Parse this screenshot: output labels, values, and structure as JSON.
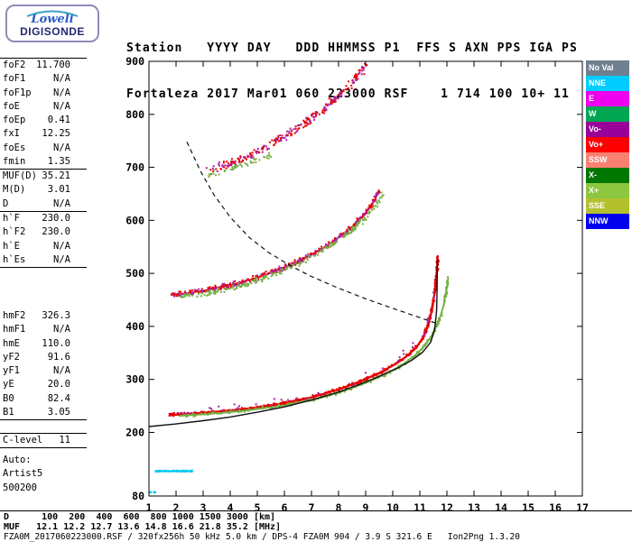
{
  "logo": {
    "line1": "Lowell",
    "line2": "DIGISONDE"
  },
  "header": {
    "line1": "Station   YYYY DAY   DDD HHMMSS P1  FFS S AXN PPS IGA PS",
    "line2": "Fortaleza 2017 Mar01 060 223000 RSF    1 714 100 10+ 11"
  },
  "params": {
    "groups": [
      {
        "rows": [
          [
            "foF2",
            "11.700"
          ],
          [
            "foF1",
            "N/A"
          ],
          [
            "foF1p",
            "N/A"
          ],
          [
            "foE",
            "N/A"
          ],
          [
            "foEp",
            "0.41"
          ],
          [
            "fxI",
            "12.25"
          ],
          [
            "foEs",
            "N/A"
          ],
          [
            "fmin",
            "1.35"
          ]
        ]
      },
      {
        "rows": [
          [
            "MUF(D)",
            "35.21"
          ],
          [
            "M(D)",
            "3.01"
          ],
          [
            "D",
            "N/A"
          ]
        ]
      },
      {
        "rows": [
          [
            "h`F",
            "230.0"
          ],
          [
            "h`F2",
            "230.0"
          ],
          [
            "h`E",
            "N/A"
          ],
          [
            "h`Es",
            "N/A"
          ]
        ]
      },
      {
        "rows": [
          [
            "hmF2",
            "326.3"
          ],
          [
            "hmF1",
            "N/A"
          ],
          [
            "hmE",
            "110.0"
          ],
          [
            "yF2",
            "91.6"
          ],
          [
            "yF1",
            "N/A"
          ],
          [
            "yE",
            "20.0"
          ],
          [
            "B0",
            "82.4"
          ],
          [
            "B1",
            "3.05"
          ]
        ]
      },
      {
        "rows": [
          [
            "C-level",
            "11"
          ]
        ]
      },
      {
        "rows": [
          [
            "Auto:",
            ""
          ],
          [
            "Artist5",
            ""
          ],
          [
            "500200",
            ""
          ]
        ]
      }
    ]
  },
  "legend": {
    "items": [
      {
        "label": "No Val",
        "color": "#708090"
      },
      {
        "label": "NNE",
        "color": "#00ccff"
      },
      {
        "label": "E",
        "color": "#ee00ee"
      },
      {
        "label": "W",
        "color": "#00a651"
      },
      {
        "label": "Vo-",
        "color": "#990099"
      },
      {
        "label": "Vo+",
        "color": "#ff0000"
      },
      {
        "label": "SSW",
        "color": "#fa8072"
      },
      {
        "label": "X-",
        "color": "#007700"
      },
      {
        "label": "X+",
        "color": "#8dc63f"
      },
      {
        "label": "SSE",
        "color": "#b4c12e"
      },
      {
        "label": "NNW",
        "color": "#0000ee"
      }
    ]
  },
  "bottom": {
    "d_row": "D      100  200  400  600  800 1000 1500 3000 [km]",
    "muf_row": "MUF   12.1 12.2 12.7 13.6 14.8 16.6 21.8 35.2 [MHz]",
    "file_row": "FZA0M_2017060223000.RSF / 320fx256h 50 kHz 5.0 km / DPS-4 FZA0M 904 / 3.9 S 321.6 E   Ion2Png 1.3.20"
  },
  "chart_data": {
    "type": "scatter",
    "title": "",
    "x_range": [
      1,
      17
    ],
    "y_range": [
      80,
      900
    ],
    "x_ticks": [
      1,
      2,
      3,
      4,
      5,
      6,
      7,
      8,
      9,
      10,
      11,
      12,
      13,
      14,
      15,
      16,
      17
    ],
    "y_tick_labels": [
      900,
      800,
      700,
      600,
      500,
      400,
      300,
      200,
      80
    ],
    "grid": false,
    "legend_position": "right",
    "traces": [
      {
        "name": "f2-trace-o-mode",
        "kind": "scatter",
        "colors": [
          "#e60000"
        ],
        "n": 520,
        "jf": 0.05,
        "jh": 3.5,
        "size": 2,
        "line_width": 2.2,
        "points": [
          [
            1.75,
            233
          ],
          [
            2.2,
            234
          ],
          [
            3,
            237
          ],
          [
            4,
            241
          ],
          [
            5,
            247
          ],
          [
            6,
            255
          ],
          [
            7,
            266
          ],
          [
            8,
            281
          ],
          [
            8.8,
            296
          ],
          [
            9.5,
            312
          ],
          [
            10,
            326
          ],
          [
            10.5,
            343
          ],
          [
            10.9,
            362
          ],
          [
            11.15,
            382
          ],
          [
            11.32,
            405
          ],
          [
            11.45,
            432
          ],
          [
            11.55,
            465
          ],
          [
            11.62,
            500
          ],
          [
            11.66,
            532
          ]
        ]
      },
      {
        "name": "f2-trace-x-mode",
        "kind": "scatter",
        "colors": [
          "#76b043"
        ],
        "n": 300,
        "jf": 0.05,
        "jh": 3.5,
        "size": 2,
        "line_width": 1.8,
        "points": [
          [
            2.1,
            231
          ],
          [
            3,
            234
          ],
          [
            4,
            238
          ],
          [
            5,
            244
          ],
          [
            6,
            251
          ],
          [
            7,
            261
          ],
          [
            8,
            275
          ],
          [
            9,
            293
          ],
          [
            9.7,
            309
          ],
          [
            10.3,
            326
          ],
          [
            10.8,
            344
          ],
          [
            11.2,
            364
          ],
          [
            11.5,
            388
          ],
          [
            11.72,
            412
          ],
          [
            11.88,
            440
          ],
          [
            11.98,
            468
          ],
          [
            12.05,
            492
          ]
        ]
      },
      {
        "name": "f2-trace-doppler-neg",
        "kind": "scatter",
        "colors": [
          "#aa22aa"
        ],
        "n": 40,
        "jf": 0.06,
        "jh": 9,
        "size": 2,
        "points": [
          [
            2,
            236
          ],
          [
            5,
            249
          ],
          [
            8,
            283
          ],
          [
            10,
            328
          ],
          [
            11.2,
            385
          ],
          [
            11.5,
            460
          ]
        ]
      },
      {
        "name": "second-hop-o",
        "kind": "scatter",
        "colors": [
          "#e60000",
          "#e60000",
          "#aa22aa"
        ],
        "n": 400,
        "jf": 0.07,
        "jh": 6,
        "size": 2,
        "line_width": 1.6,
        "points": [
          [
            1.8,
            459
          ],
          [
            2.5,
            463
          ],
          [
            3.2,
            469
          ],
          [
            4,
            478
          ],
          [
            4.8,
            489
          ],
          [
            5.6,
            503
          ],
          [
            6.4,
            520
          ],
          [
            7.2,
            541
          ],
          [
            7.9,
            563
          ],
          [
            8.5,
            588
          ],
          [
            9,
            614
          ],
          [
            9.3,
            636
          ],
          [
            9.5,
            655
          ]
        ]
      },
      {
        "name": "second-hop-x",
        "kind": "scatter",
        "colors": [
          "#76b043"
        ],
        "n": 220,
        "jf": 0.07,
        "jh": 6,
        "size": 2,
        "points": [
          [
            2.1,
            455
          ],
          [
            3,
            461
          ],
          [
            3.8,
            469
          ],
          [
            4.6,
            480
          ],
          [
            5.4,
            494
          ],
          [
            6.2,
            511
          ],
          [
            7,
            531
          ],
          [
            7.8,
            555
          ],
          [
            8.4,
            578
          ],
          [
            9,
            605
          ],
          [
            9.4,
            630
          ],
          [
            9.65,
            652
          ]
        ]
      },
      {
        "name": "third-hop",
        "kind": "scatter",
        "colors": [
          "#e60000",
          "#e60000",
          "#aa22aa"
        ],
        "n": 280,
        "jf": 0.1,
        "jh": 10,
        "size": 2,
        "points": [
          [
            3.2,
            694
          ],
          [
            3.8,
            704
          ],
          [
            4.5,
            718
          ],
          [
            5.2,
            736
          ],
          [
            6,
            758
          ],
          [
            6.8,
            784
          ],
          [
            7.5,
            812
          ],
          [
            8.1,
            840
          ],
          [
            8.6,
            866
          ],
          [
            9,
            893
          ]
        ]
      },
      {
        "name": "third-hop-x",
        "kind": "scatter",
        "colors": [
          "#76b043"
        ],
        "n": 50,
        "jf": 0.08,
        "jh": 6,
        "size": 2,
        "points": [
          [
            3.2,
            687
          ],
          [
            4,
            697
          ],
          [
            4.8,
            710
          ],
          [
            5.5,
            724
          ]
        ]
      },
      {
        "name": "e-region-echo",
        "kind": "scatter",
        "colors": [
          "#00c8f0"
        ],
        "n": 90,
        "jf": 0.03,
        "jh": 1.5,
        "size": 2,
        "line_width": 1.6,
        "points": [
          [
            1.25,
            127
          ],
          [
            2.6,
            127
          ]
        ]
      },
      {
        "name": "e-region-corner",
        "kind": "scatter",
        "colors": [
          "#00c8f0"
        ],
        "n": 8,
        "jf": 0.05,
        "jh": 1,
        "size": 2,
        "points": [
          [
            1.02,
            87
          ],
          [
            1.3,
            87
          ]
        ]
      },
      {
        "name": "true-height-profile",
        "kind": "line",
        "color": "#111111",
        "width": 1.4,
        "points": [
          [
            1,
            211
          ],
          [
            2,
            216
          ],
          [
            3,
            222
          ],
          [
            4,
            229
          ],
          [
            5,
            238
          ],
          [
            6,
            248
          ],
          [
            7,
            261
          ],
          [
            8,
            276
          ],
          [
            8.8,
            291
          ],
          [
            9.6,
            308
          ],
          [
            10.2,
            322
          ],
          [
            10.7,
            336
          ],
          [
            11.1,
            351
          ],
          [
            11.4,
            370
          ],
          [
            11.55,
            395
          ],
          [
            11.62,
            430
          ],
          [
            11.64,
            480
          ],
          [
            11.65,
            527
          ]
        ]
      },
      {
        "name": "transmission-curve",
        "kind": "line",
        "color": "#111111",
        "width": 1.2,
        "dash": "5,4",
        "points": [
          [
            2.4,
            748
          ],
          [
            2.9,
            693
          ],
          [
            3.4,
            648
          ],
          [
            4,
            606
          ],
          [
            4.7,
            568
          ],
          [
            5.4,
            540
          ],
          [
            6.2,
            515
          ],
          [
            7,
            494
          ],
          [
            8,
            472
          ],
          [
            9,
            452
          ],
          [
            10,
            434
          ],
          [
            10.8,
            420
          ],
          [
            11.6,
            406
          ]
        ]
      }
    ]
  }
}
